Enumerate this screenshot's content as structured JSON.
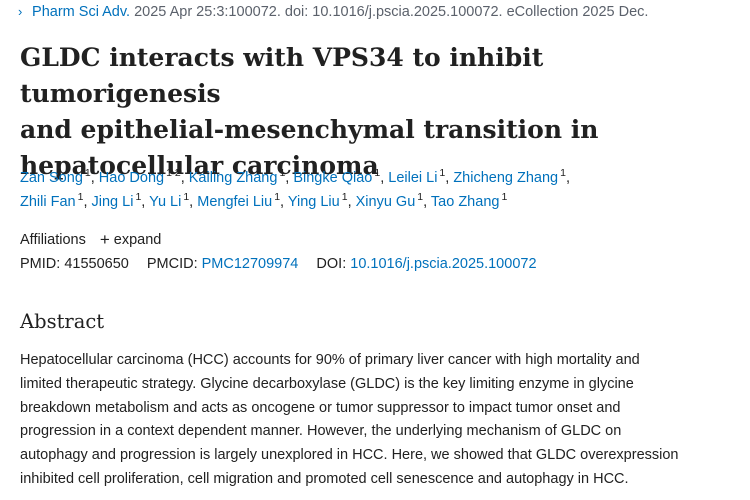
{
  "citation": {
    "chevron": "›",
    "journal": "Pharm Sci Adv.",
    "rest": " 2025 Apr 25:3:100072. doi: 10.1016/j.pscia.2025.100072. eCollection 2025 Dec."
  },
  "title": {
    "line1": "GLDC interacts with VPS34 to inhibit tumorigenesis",
    "line2": "and epithelial-mesenchymal transition in",
    "line3": "hepatocellular carcinoma"
  },
  "authors": [
    {
      "name": "Zan Song",
      "aff": "1"
    },
    {
      "name": "Hao Dong",
      "aff": "1 2"
    },
    {
      "name": "Kailing Zhang",
      "aff": "1"
    },
    {
      "name": "Bingke Qiao",
      "aff": "1"
    },
    {
      "name": "Leilei Li",
      "aff": "1"
    },
    {
      "name": "Zhicheng Zhang",
      "aff": "1"
    },
    {
      "name": "Zhili Fan",
      "aff": "1"
    },
    {
      "name": "Jing Li",
      "aff": "1"
    },
    {
      "name": "Yu Li",
      "aff": "1"
    },
    {
      "name": "Mengfei Liu",
      "aff": "1"
    },
    {
      "name": "Ying Liu",
      "aff": "1"
    },
    {
      "name": "Xinyu Gu",
      "aff": "1"
    },
    {
      "name": "Tao Zhang",
      "aff": "1"
    }
  ],
  "affiliations": {
    "label": "Affiliations",
    "expand_icon": "+",
    "expand_label": "expand"
  },
  "ids": {
    "pmid_label": "PMID:",
    "pmid": "41550650",
    "pmcid_label": "PMCID:",
    "pmcid": "PMC12709974",
    "doi_label": "DOI:",
    "doi": "10.1016/j.pscia.2025.100072"
  },
  "abstract": {
    "heading": "Abstract",
    "lines": [
      "Hepatocellular carcinoma (HCC) accounts for 90% of primary liver cancer with high mortality and",
      "limited therapeutic strategy. Glycine decarboxylase (GLDC) is the key limiting enzyme in glycine",
      "breakdown metabolism and acts as oncogene or tumor suppressor to impact tumor onset and",
      "progression in a context dependent manner. However, the underlying mechanism of GLDC on",
      "autophagy and progression is largely unexplored in HCC. Here, we showed that GLDC overexpression",
      "inhibited cell proliferation, cell migration and promoted cell senescence and autophagy in HCC."
    ]
  }
}
